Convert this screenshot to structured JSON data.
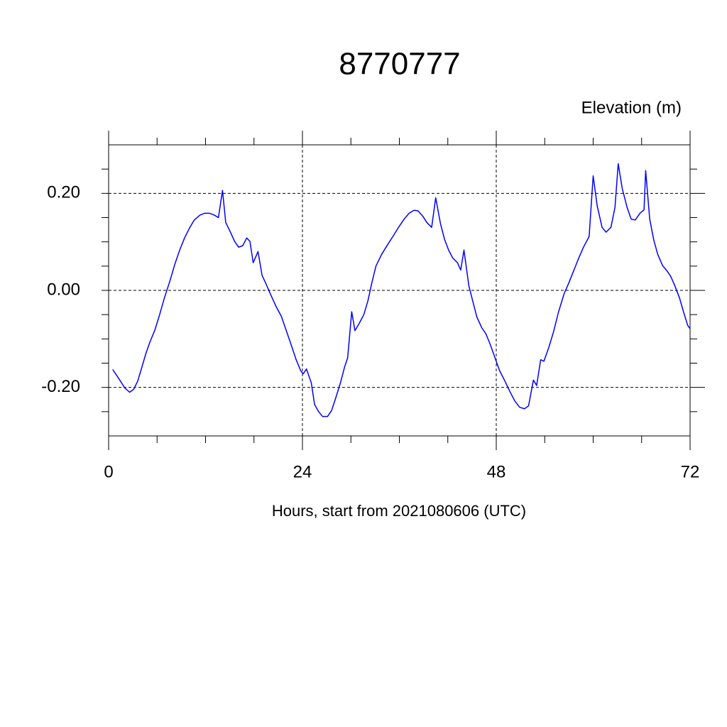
{
  "chart_data": {
    "type": "line",
    "title": "8770777",
    "y_label": "Elevation (m)",
    "x_label": "Hours, start from 2021080606 (UTC)",
    "color": "#0000ff",
    "x": [
      0.5,
      1.23,
      2.0,
      2.6,
      3.1,
      3.6,
      4.0,
      4.6,
      5.1,
      5.7,
      6.3,
      6.9,
      7.6,
      8.2,
      8.8,
      9.4,
      10.0,
      10.6,
      11.3,
      11.9,
      12.5,
      13.1,
      13.6,
      14.1,
      14.5,
      15.0,
      15.6,
      16.1,
      16.6,
      17.1,
      17.5,
      17.9,
      18.5,
      19.0,
      19.5,
      20.1,
      20.7,
      21.4,
      22.0,
      22.6,
      23.2,
      23.8,
      24.1,
      24.5,
      25.1,
      25.5,
      26.0,
      26.5,
      27.1,
      27.6,
      28.1,
      28.7,
      29.2,
      29.6,
      30.1,
      30.5,
      31.0,
      31.6,
      32.1,
      32.6,
      33.1,
      33.8,
      34.5,
      35.2,
      35.9,
      36.6,
      37.2,
      37.8,
      38.3,
      38.9,
      39.4,
      40.0,
      40.5,
      41.1,
      41.6,
      42.1,
      42.6,
      43.2,
      43.6,
      44.0,
      44.6,
      45.1,
      45.6,
      46.2,
      46.7,
      47.2,
      47.8,
      48.4,
      49.1,
      49.7,
      50.3,
      50.9,
      51.5,
      52.0,
      52.6,
      53.0,
      53.5,
      53.9,
      54.5,
      55.1,
      55.7,
      56.4,
      57.0,
      57.6,
      58.2,
      58.8,
      59.5,
      60.0,
      60.5,
      61.1,
      61.6,
      62.2,
      62.7,
      63.1,
      63.6,
      64.2,
      64.7,
      65.2,
      65.8,
      66.3,
      66.5,
      67.0,
      67.5,
      68.0,
      68.6,
      69.1,
      69.6,
      70.1,
      70.7,
      71.2,
      71.7,
      72.0
    ],
    "values": [
      -0.163,
      -0.181,
      -0.201,
      -0.21,
      -0.204,
      -0.187,
      -0.165,
      -0.131,
      -0.107,
      -0.083,
      -0.051,
      -0.016,
      0.02,
      0.054,
      0.083,
      0.108,
      0.128,
      0.145,
      0.155,
      0.159,
      0.159,
      0.155,
      0.15,
      0.206,
      0.14,
      0.123,
      0.101,
      0.089,
      0.092,
      0.108,
      0.101,
      0.057,
      0.08,
      0.031,
      0.013,
      -0.01,
      -0.032,
      -0.054,
      -0.083,
      -0.112,
      -0.142,
      -0.166,
      -0.172,
      -0.162,
      -0.191,
      -0.235,
      -0.25,
      -0.26,
      -0.26,
      -0.248,
      -0.223,
      -0.191,
      -0.159,
      -0.139,
      -0.044,
      -0.083,
      -0.069,
      -0.05,
      -0.022,
      0.016,
      0.05,
      0.074,
      0.093,
      0.111,
      0.13,
      0.147,
      0.159,
      0.165,
      0.164,
      0.153,
      0.14,
      0.13,
      0.191,
      0.137,
      0.105,
      0.083,
      0.067,
      0.057,
      0.042,
      0.083,
      0.01,
      -0.023,
      -0.055,
      -0.077,
      -0.089,
      -0.109,
      -0.137,
      -0.165,
      -0.188,
      -0.209,
      -0.228,
      -0.241,
      -0.244,
      -0.238,
      -0.185,
      -0.196,
      -0.143,
      -0.146,
      -0.118,
      -0.085,
      -0.045,
      -0.007,
      0.016,
      0.041,
      0.066,
      0.089,
      0.111,
      0.236,
      0.174,
      0.13,
      0.12,
      0.13,
      0.171,
      0.261,
      0.21,
      0.171,
      0.147,
      0.145,
      0.159,
      0.166,
      0.247,
      0.147,
      0.104,
      0.074,
      0.051,
      0.041,
      0.029,
      0.01,
      -0.016,
      -0.045,
      -0.072,
      -0.079
    ],
    "xlim": [
      0,
      72
    ],
    "ylim": [
      -0.3,
      0.3
    ],
    "xticks": [
      0,
      24,
      48,
      72
    ],
    "yticks": [
      {
        "value": -0.2,
        "label": "-0.20"
      },
      {
        "value": 0,
        "label": "0.00"
      },
      {
        "value": 0.2,
        "label": "0.20"
      }
    ],
    "xminorticks": [
      6,
      12,
      18,
      30,
      36,
      42,
      54,
      60,
      66
    ],
    "yminorticks": [
      -0.25,
      -0.15,
      -0.1,
      -0.05,
      0.05,
      0.1,
      0.15,
      0.25
    ],
    "grid": true
  }
}
